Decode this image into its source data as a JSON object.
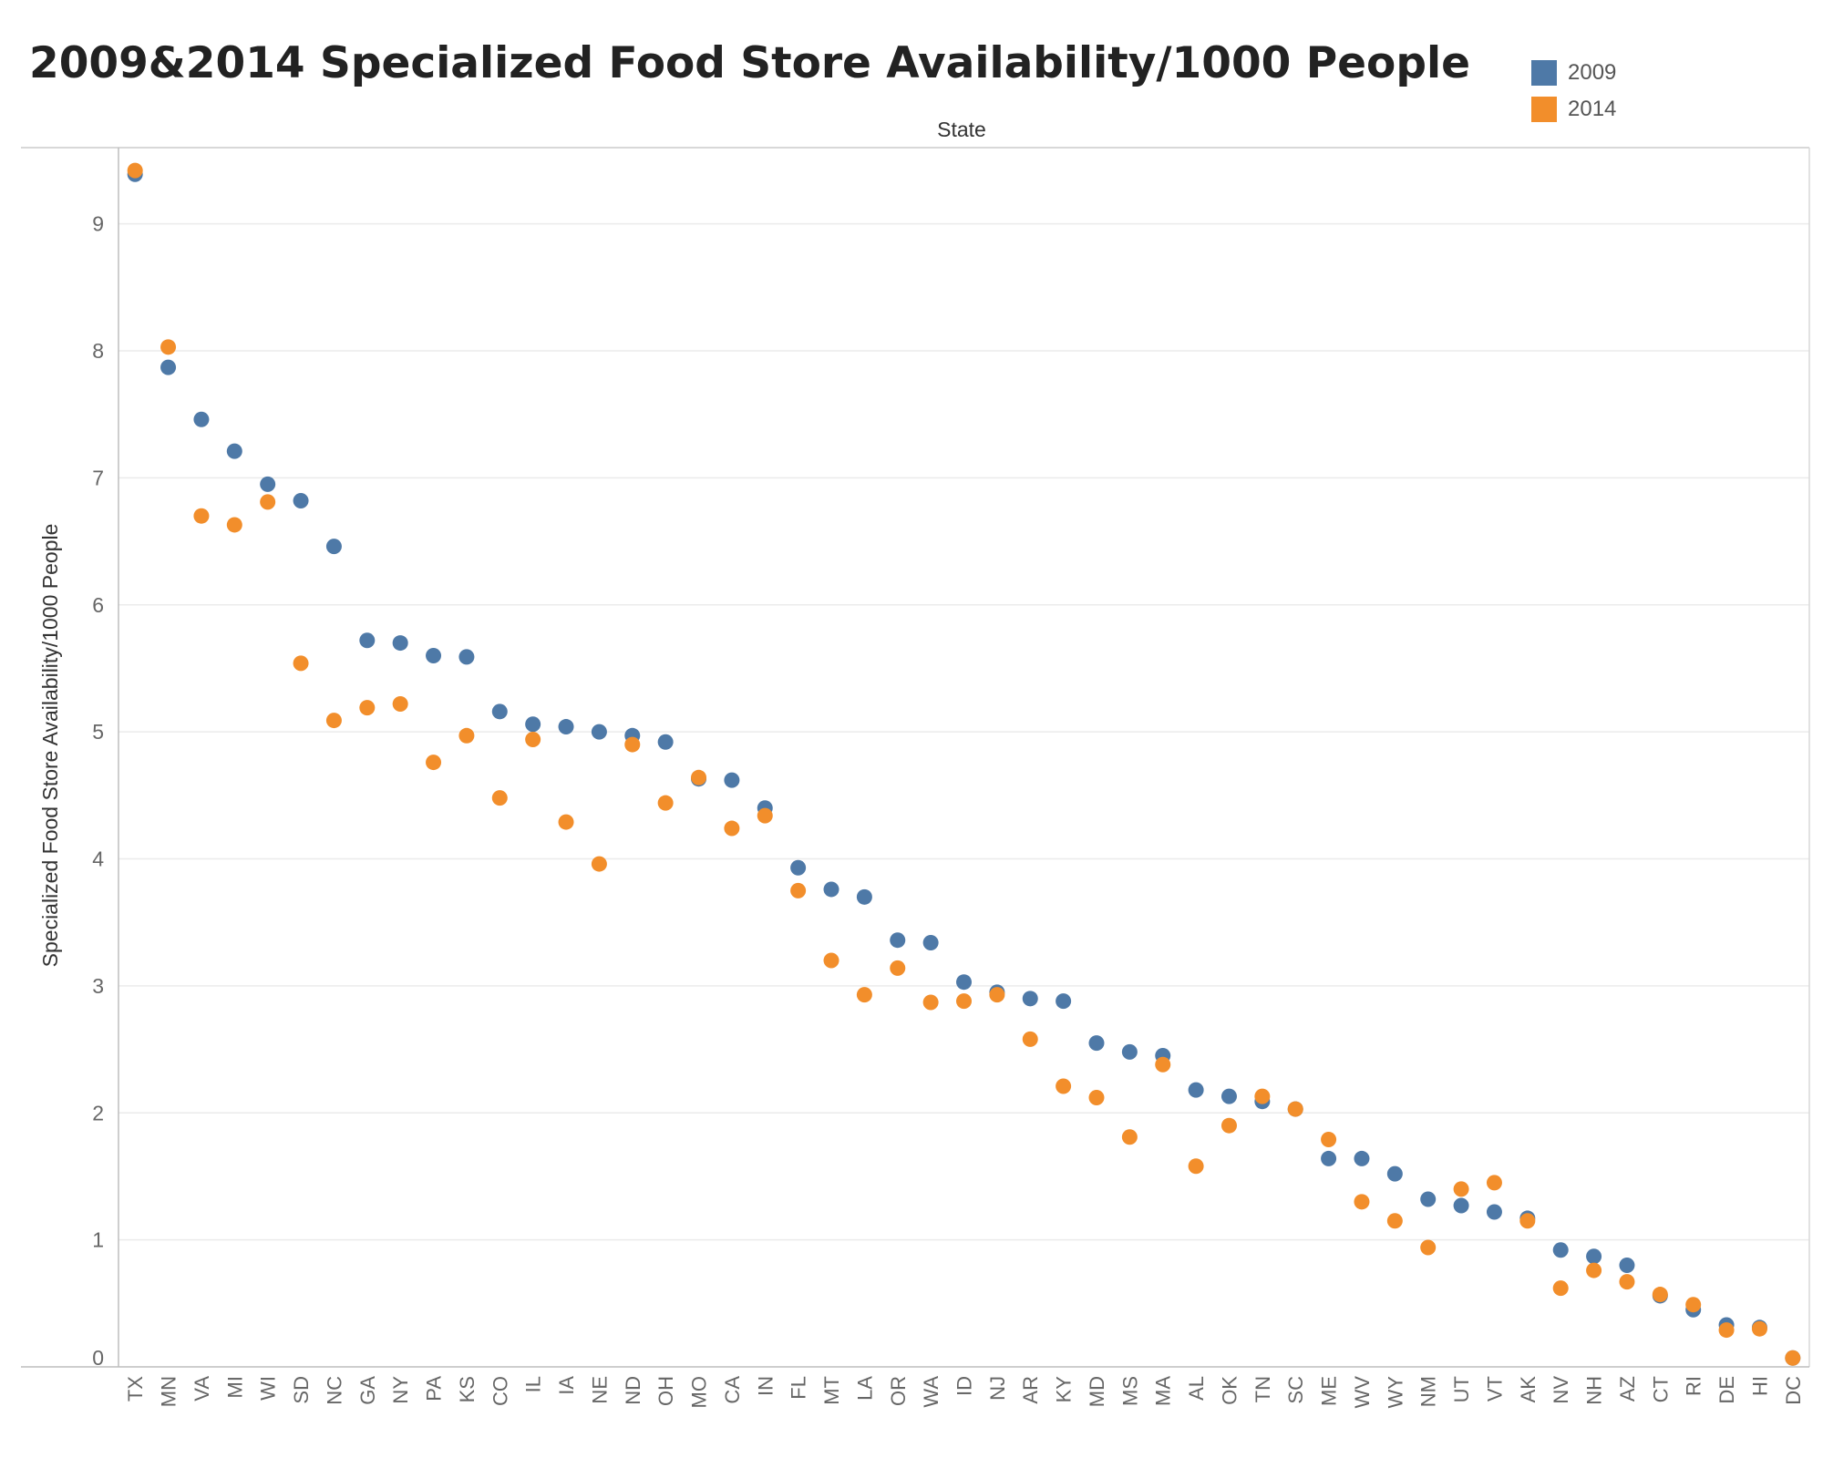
{
  "title": "2009&2014 Specialized Food Store Availability/1000 People",
  "colors": {
    "2009": "#4e79a7",
    "2014": "#f28e2b"
  },
  "legend": [
    {
      "label": "2009",
      "color": "#4e79a7"
    },
    {
      "label": "2014",
      "color": "#f28e2b"
    }
  ],
  "chart_data": {
    "type": "scatter",
    "title": "2009&2014 Specialized Food Store Availability/1000 People",
    "xlabel": "State",
    "ylabel": "Specialized Food Store Availability/1000 People",
    "ylim": [
      0,
      9.6
    ],
    "yticks": [
      0,
      1,
      2,
      3,
      4,
      5,
      6,
      7,
      8,
      9
    ],
    "grid": true,
    "legend_position": "top-right",
    "categories": [
      "TX",
      "MN",
      "VA",
      "MI",
      "WI",
      "SD",
      "NC",
      "GA",
      "NY",
      "PA",
      "KS",
      "CO",
      "IL",
      "IA",
      "NE",
      "ND",
      "OH",
      "MO",
      "CA",
      "IN",
      "FL",
      "MT",
      "LA",
      "OR",
      "WA",
      "ID",
      "NJ",
      "AR",
      "KY",
      "MD",
      "MS",
      "MA",
      "AL",
      "OK",
      "TN",
      "SC",
      "ME",
      "WV",
      "WY",
      "NM",
      "UT",
      "VT",
      "AK",
      "NV",
      "NH",
      "AZ",
      "CT",
      "RI",
      "DE",
      "HI",
      "DC"
    ],
    "series": [
      {
        "name": "2009",
        "values": [
          9.39,
          7.87,
          7.46,
          7.21,
          6.95,
          6.82,
          6.46,
          5.72,
          5.7,
          5.6,
          5.59,
          5.16,
          5.06,
          5.04,
          5.0,
          4.97,
          4.92,
          4.63,
          4.62,
          4.4,
          3.93,
          3.76,
          3.7,
          3.36,
          3.34,
          3.03,
          2.95,
          2.9,
          2.88,
          2.55,
          2.48,
          2.45,
          2.18,
          2.13,
          2.09,
          2.03,
          1.64,
          1.64,
          1.52,
          1.32,
          1.27,
          1.22,
          1.17,
          0.92,
          0.87,
          0.8,
          0.56,
          0.45,
          0.33,
          0.31,
          0.07
        ]
      },
      {
        "name": "2014",
        "values": [
          9.42,
          8.03,
          6.7,
          6.63,
          6.81,
          5.54,
          5.09,
          5.19,
          5.22,
          4.76,
          4.97,
          4.48,
          4.94,
          4.29,
          3.96,
          4.9,
          4.44,
          4.64,
          4.24,
          4.34,
          3.75,
          3.2,
          2.93,
          3.14,
          2.87,
          2.88,
          2.93,
          2.58,
          2.21,
          2.12,
          1.81,
          2.38,
          1.58,
          1.9,
          2.13,
          2.03,
          1.79,
          1.3,
          1.15,
          0.94,
          1.4,
          1.45,
          1.15,
          0.62,
          0.76,
          0.67,
          0.57,
          0.49,
          0.29,
          0.3,
          0.07
        ]
      }
    ]
  }
}
